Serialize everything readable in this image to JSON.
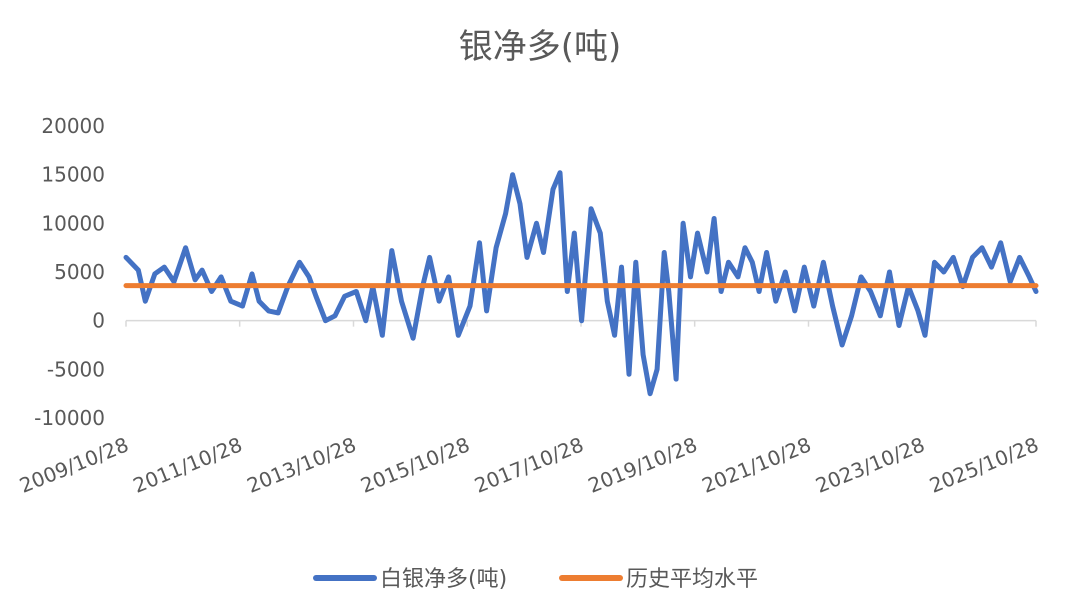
{
  "chart_data": {
    "type": "line",
    "title": "银净多(吨)",
    "xlabel": "",
    "ylabel": "",
    "ylim": [
      -10000,
      20000
    ],
    "yticks": [
      "20000",
      "15000",
      "10000",
      "5000",
      "0",
      "-5000",
      "-10000"
    ],
    "xticks": [
      "2009/10/28",
      "2011/10/28",
      "2013/10/28",
      "2015/10/28",
      "2017/10/28",
      "2019/10/28",
      "2021/10/28",
      "2023/10/28",
      "2025/10/28"
    ],
    "grid": false,
    "legend_position": "bottom",
    "series": [
      {
        "name": "白银净多(吨)",
        "color": "#4472C4",
        "points": [
          [
            "2009-10-28",
            6500
          ],
          [
            "2010-01-15",
            5200
          ],
          [
            "2010-03-01",
            2000
          ],
          [
            "2010-05-01",
            4800
          ],
          [
            "2010-07-01",
            5500
          ],
          [
            "2010-09-01",
            4000
          ],
          [
            "2010-11-15",
            7500
          ],
          [
            "2011-01-15",
            4200
          ],
          [
            "2011-03-01",
            5200
          ],
          [
            "2011-05-01",
            3000
          ],
          [
            "2011-07-01",
            4500
          ],
          [
            "2011-09-01",
            2000
          ],
          [
            "2011-11-15",
            1500
          ],
          [
            "2012-01-15",
            4800
          ],
          [
            "2012-03-01",
            2000
          ],
          [
            "2012-05-01",
            1000
          ],
          [
            "2012-07-01",
            800
          ],
          [
            "2012-09-01",
            3500
          ],
          [
            "2012-11-15",
            6000
          ],
          [
            "2013-01-15",
            4500
          ],
          [
            "2013-03-01",
            2500
          ],
          [
            "2013-05-01",
            0
          ],
          [
            "2013-07-01",
            500
          ],
          [
            "2013-09-01",
            2500
          ],
          [
            "2013-11-15",
            3000
          ],
          [
            "2014-01-15",
            0
          ],
          [
            "2014-03-01",
            3500
          ],
          [
            "2014-05-01",
            -1500
          ],
          [
            "2014-07-01",
            7200
          ],
          [
            "2014-09-01",
            2000
          ],
          [
            "2014-11-15",
            -1800
          ],
          [
            "2015-01-15",
            3500
          ],
          [
            "2015-03-01",
            6500
          ],
          [
            "2015-05-01",
            2000
          ],
          [
            "2015-07-01",
            4500
          ],
          [
            "2015-09-01",
            -1500
          ],
          [
            "2015-11-15",
            1500
          ],
          [
            "2016-01-15",
            8000
          ],
          [
            "2016-03-01",
            1000
          ],
          [
            "2016-05-01",
            7500
          ],
          [
            "2016-07-01",
            11000
          ],
          [
            "2016-08-15",
            15000
          ],
          [
            "2016-10-01",
            12000
          ],
          [
            "2016-11-15",
            6500
          ],
          [
            "2017-01-15",
            10000
          ],
          [
            "2017-03-01",
            7000
          ],
          [
            "2017-05-01",
            13500
          ],
          [
            "2017-06-15",
            15200
          ],
          [
            "2017-08-01",
            3000
          ],
          [
            "2017-09-15",
            9000
          ],
          [
            "2017-11-01",
            0
          ],
          [
            "2018-01-01",
            11500
          ],
          [
            "2018-03-01",
            9000
          ],
          [
            "2018-04-15",
            2000
          ],
          [
            "2018-06-01",
            -1500
          ],
          [
            "2018-07-15",
            5500
          ],
          [
            "2018-09-01",
            -5500
          ],
          [
            "2018-10-15",
            6000
          ],
          [
            "2018-12-01",
            -3500
          ],
          [
            "2019-01-15",
            -7500
          ],
          [
            "2019-03-01",
            -5000
          ],
          [
            "2019-04-15",
            7000
          ],
          [
            "2019-05-15",
            3000
          ],
          [
            "2019-07-01",
            -6000
          ],
          [
            "2019-08-15",
            10000
          ],
          [
            "2019-10-01",
            4500
          ],
          [
            "2019-11-15",
            9000
          ],
          [
            "2020-01-15",
            5000
          ],
          [
            "2020-03-01",
            10500
          ],
          [
            "2020-04-15",
            3000
          ],
          [
            "2020-06-01",
            6000
          ],
          [
            "2020-08-01",
            4500
          ],
          [
            "2020-09-15",
            7500
          ],
          [
            "2020-11-01",
            6000
          ],
          [
            "2020-12-15",
            3000
          ],
          [
            "2021-02-01",
            7000
          ],
          [
            "2021-04-01",
            2000
          ],
          [
            "2021-06-01",
            5000
          ],
          [
            "2021-08-01",
            1000
          ],
          [
            "2021-10-01",
            5500
          ],
          [
            "2021-12-01",
            1500
          ],
          [
            "2022-02-01",
            6000
          ],
          [
            "2022-04-01",
            1500
          ],
          [
            "2022-06-01",
            -2500
          ],
          [
            "2022-08-01",
            500
          ],
          [
            "2022-10-01",
            4500
          ],
          [
            "2022-12-01",
            3000
          ],
          [
            "2023-02-01",
            500
          ],
          [
            "2023-04-01",
            5000
          ],
          [
            "2023-06-01",
            -500
          ],
          [
            "2023-08-01",
            3500
          ],
          [
            "2023-10-01",
            1000
          ],
          [
            "2023-11-15",
            -1500
          ],
          [
            "2024-01-15",
            6000
          ],
          [
            "2024-03-15",
            5000
          ],
          [
            "2024-05-15",
            6500
          ],
          [
            "2024-07-15",
            3500
          ],
          [
            "2024-09-15",
            6500
          ],
          [
            "2024-11-15",
            7500
          ],
          [
            "2025-01-15",
            5500
          ],
          [
            "2025-03-15",
            8000
          ],
          [
            "2025-05-15",
            4000
          ],
          [
            "2025-07-15",
            6500
          ],
          [
            "2025-09-15",
            4500
          ],
          [
            "2025-10-28",
            3000
          ]
        ]
      },
      {
        "name": "历史平均水平",
        "color": "#ED7D31",
        "points": [
          [
            "2009-10-28",
            3600
          ],
          [
            "2025-10-28",
            3600
          ]
        ]
      }
    ]
  }
}
